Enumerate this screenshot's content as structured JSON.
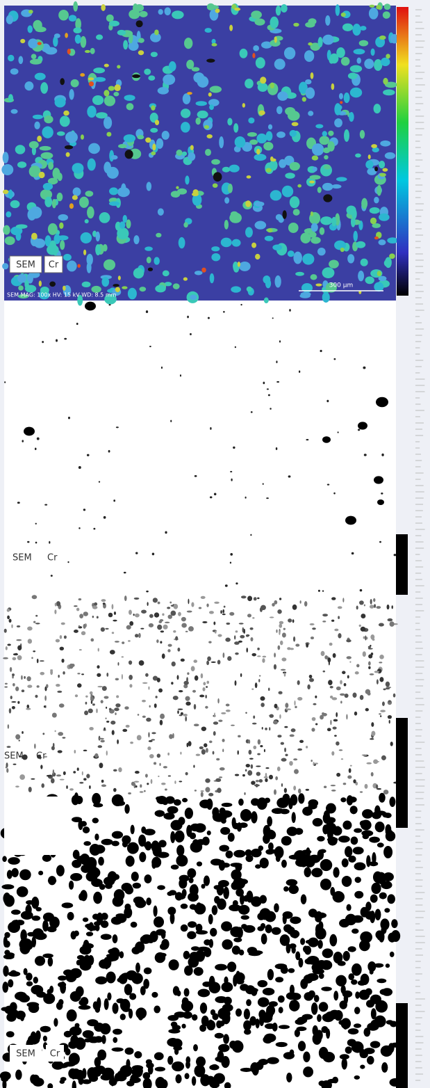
{
  "panels": [
    {
      "labels": [
        "SEM",
        "Cr"
      ],
      "scale_bar": "300 µm",
      "footer": "SEM MAG: 100x HV: 15 kV WD: 8.5 mm"
    },
    {
      "labels": [
        "SEM",
        "Cr"
      ]
    },
    {
      "labels": [
        "SEM",
        "Cr"
      ]
    },
    {
      "labels": [
        "SEM",
        "Cr"
      ]
    }
  ]
}
